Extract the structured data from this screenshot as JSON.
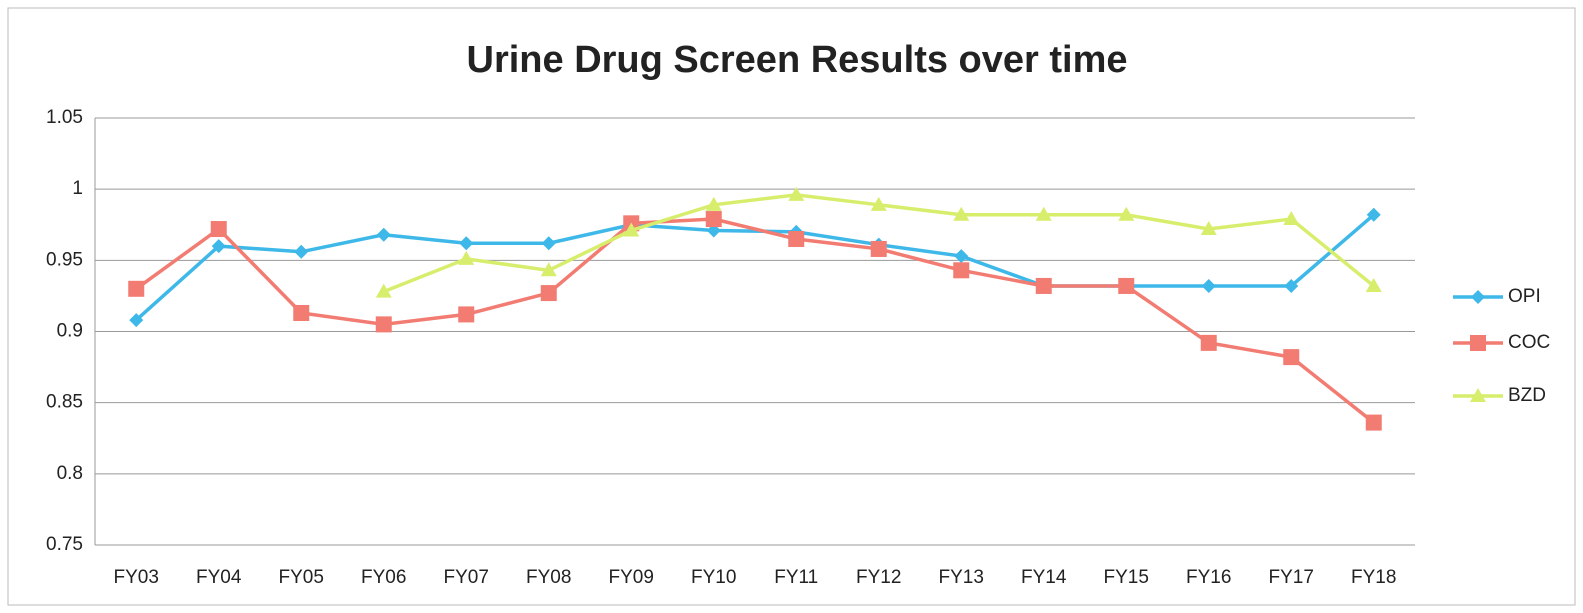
{
  "chart_data": {
    "type": "line",
    "title": "Urine Drug Screen Results over time",
    "categories": [
      "FY03",
      "FY04",
      "FY05",
      "FY06",
      "FY07",
      "FY08",
      "FY09",
      "FY10",
      "FY11",
      "FY12",
      "FY13",
      "FY14",
      "FY15",
      "FY16",
      "FY17",
      "FY18"
    ],
    "series": [
      {
        "name": "OPI",
        "color": "#3db8e8",
        "marker": "diamond",
        "values": [
          0.908,
          0.96,
          0.956,
          0.968,
          0.962,
          0.962,
          0.975,
          0.971,
          0.97,
          0.961,
          0.953,
          0.932,
          0.932,
          0.932,
          0.932,
          0.982
        ]
      },
      {
        "name": "COC",
        "color": "#f27b72",
        "marker": "square",
        "values": [
          0.93,
          0.972,
          0.913,
          0.905,
          0.912,
          0.927,
          0.976,
          0.979,
          0.965,
          0.958,
          0.943,
          0.932,
          0.932,
          0.892,
          0.882,
          0.836
        ]
      },
      {
        "name": "BZD",
        "color": "#d6ee6c",
        "marker": "triangle",
        "values": [
          null,
          null,
          null,
          0.928,
          0.951,
          0.943,
          0.971,
          0.989,
          0.996,
          0.989,
          0.982,
          0.982,
          0.982,
          0.972,
          0.979,
          0.932
        ]
      }
    ],
    "ylim": [
      0.75,
      1.05
    ],
    "yticks": [
      0.75,
      0.8,
      0.85,
      0.9,
      0.95,
      1,
      1.05
    ],
    "grid": true,
    "legend": "right"
  }
}
